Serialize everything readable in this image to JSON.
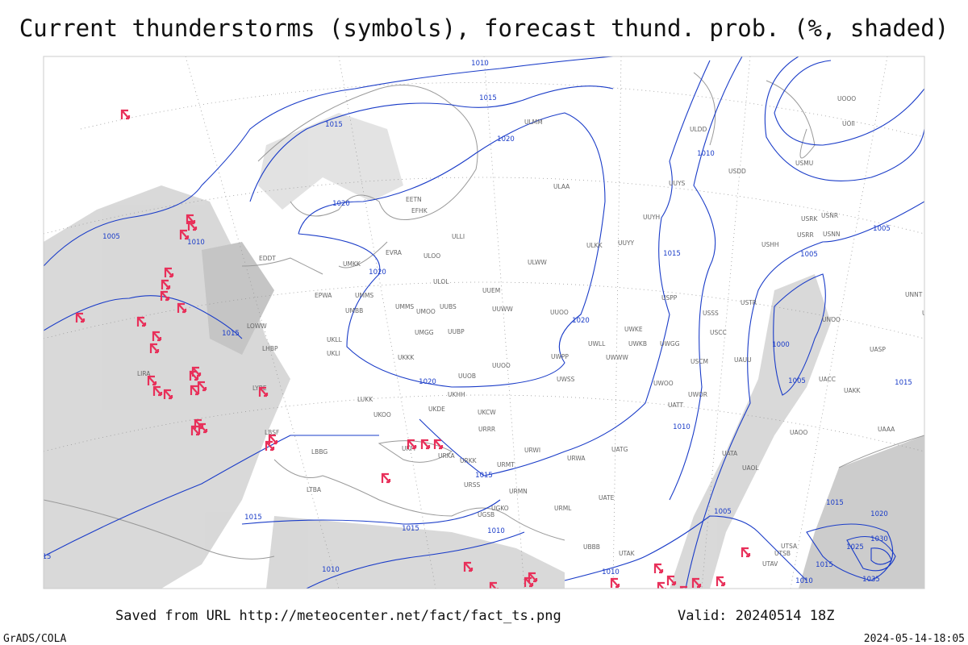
{
  "header": {
    "title": "Current thunderstorms (symbols), forecast thund. prob. (%, shaded)"
  },
  "map": {
    "isobar_labels": [
      "1010",
      "1015",
      "1015",
      "1020",
      "1020",
      "1005",
      "1010",
      "1020",
      "1015",
      "1020",
      "1020",
      "1010",
      "1015",
      "1005",
      "1005",
      "1000",
      "1005",
      "1015",
      "1010",
      "1015",
      "1015",
      "1015",
      "1010",
      "1005",
      "1010",
      "1025",
      "1030",
      "1035",
      "1020",
      "1015",
      "1010",
      "1015",
      "1010",
      "15"
    ],
    "stations": [
      "EFHK",
      "ULLI",
      "EVRA",
      "ULOO",
      "UMKK",
      "EPWA",
      "UMMS",
      "ULOL",
      "UUEM",
      "UMMS",
      "UMOO",
      "UUBS",
      "UUWW",
      "UUOO",
      "UMGG",
      "UUBP",
      "UKKK",
      "UUOO",
      "UUOB",
      "UKHH",
      "UKDE",
      "UKCW",
      "URRR",
      "UKOO",
      "UKFF",
      "URKA",
      "URKK",
      "URSS",
      "UGSB",
      "UGKO",
      "URMT",
      "URWI",
      "URWA",
      "URMN",
      "URML",
      "UBBB",
      "UATG",
      "UATE",
      "UWOO",
      "UWOR",
      "UATT",
      "UWKE",
      "UWKB",
      "UWWW",
      "UWGG",
      "UWLL",
      "UWPP",
      "UWSS",
      "ULKK",
      "UUYY",
      "ULWW",
      "ULAA",
      "UUYH",
      "UUYS",
      "USSS",
      "USCC",
      "USCM",
      "UAUU",
      "USTR",
      "USHH",
      "USDD",
      "ULDD",
      "USMU",
      "USRR",
      "USRK",
      "USNN",
      "USNR",
      "UOII",
      "UOOO",
      "UNNT",
      "UNBB",
      "UNOO",
      "UACC",
      "UAKK",
      "UASP",
      "UAOO",
      "UATA",
      "UAOL",
      "UAAA",
      "USPP",
      "ULMM",
      "EETN",
      "EDDT",
      "LHBP",
      "LUKK",
      "LYBE",
      "LBSF",
      "LBBG",
      "LTBA",
      "UKLL",
      "UKLI",
      "UMBB",
      "LOWW",
      "LIRA",
      "UTAK",
      "UTAV",
      "UTSA",
      "UTSB"
    ]
  },
  "footer": {
    "source": "Saved from URL http://meteocenter.net/fact/fact_ts.png",
    "valid": "Valid: 20240514 18Z",
    "software": "GrADS/COLA",
    "timestamp": "2024-05-14-18:05"
  }
}
